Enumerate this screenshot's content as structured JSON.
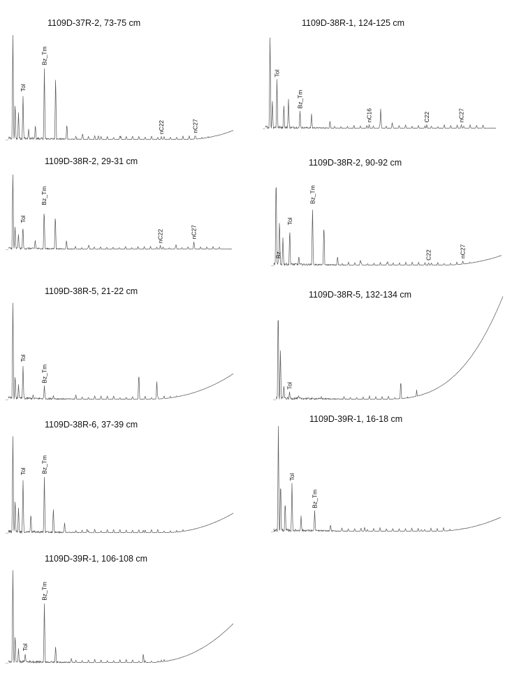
{
  "colors": {
    "background": "#ffffff",
    "trace": "#555555",
    "text": "#111111"
  },
  "chart_data": [
    {
      "type": "line",
      "title": "1109D-37R-2, 73-75 cm",
      "xlabel": "",
      "ylabel": "",
      "labeled_peaks": [
        {
          "name": "Tol",
          "x": 0.065,
          "y": 0.42
        },
        {
          "name": "Bz_Tm",
          "x": 0.16,
          "y": 0.66
        },
        {
          "name": "nC22",
          "x": 0.68,
          "y": 0.03
        },
        {
          "name": "nC27",
          "x": 0.83,
          "y": 0.04
        }
      ],
      "minor_peaks": [
        [
          0.02,
          1.0
        ],
        [
          0.03,
          0.35
        ],
        [
          0.045,
          0.25
        ],
        [
          0.09,
          0.1
        ],
        [
          0.12,
          0.14
        ],
        [
          0.21,
          0.6
        ],
        [
          0.26,
          0.15
        ],
        [
          0.33,
          0.06
        ],
        [
          0.4,
          0.04
        ],
        [
          0.5,
          0.03
        ]
      ],
      "baseline": {
        "end": 0.08,
        "rise_start": 0.8,
        "power": 2
      }
    },
    {
      "type": "line",
      "title": "1109D-38R-1, 124-125 cm",
      "xlabel": "",
      "ylabel": "",
      "labeled_peaks": [
        {
          "name": "Tol",
          "x": 0.05,
          "y": 0.5
        },
        {
          "name": "Bz_Tm",
          "x": 0.15,
          "y": 0.18
        },
        {
          "name": "nC16",
          "x": 0.45,
          "y": 0.04
        },
        {
          "name": "C22",
          "x": 0.7,
          "y": 0.04
        },
        {
          "name": "nC27",
          "x": 0.85,
          "y": 0.04
        }
      ],
      "minor_peaks": [
        [
          0.02,
          1.0
        ],
        [
          0.03,
          0.3
        ],
        [
          0.08,
          0.25
        ],
        [
          0.1,
          0.3
        ],
        [
          0.2,
          0.15
        ],
        [
          0.28,
          0.08
        ],
        [
          0.5,
          0.2
        ],
        [
          0.55,
          0.06
        ]
      ],
      "baseline": {
        "end": 0.0,
        "rise_start": 1.0,
        "power": 2
      }
    },
    {
      "type": "line",
      "title": "1109D-38R-2, 29-31 cm",
      "xlabel": "",
      "ylabel": "",
      "labeled_peaks": [
        {
          "name": "Tol",
          "x": 0.065,
          "y": 0.3
        },
        {
          "name": "Bz_Tm",
          "x": 0.16,
          "y": 0.52
        },
        {
          "name": "nC22",
          "x": 0.68,
          "y": 0.05
        },
        {
          "name": "nC27",
          "x": 0.83,
          "y": 0.1
        }
      ],
      "minor_peaks": [
        [
          0.02,
          1.0
        ],
        [
          0.03,
          0.3
        ],
        [
          0.045,
          0.2
        ],
        [
          0.12,
          0.12
        ],
        [
          0.21,
          0.45
        ],
        [
          0.26,
          0.12
        ],
        [
          0.36,
          0.06
        ],
        [
          0.75,
          0.06
        ]
      ],
      "baseline": {
        "end": 0.0,
        "rise_start": 1.0,
        "power": 2
      }
    },
    {
      "type": "line",
      "title": "1109D-38R-2, 90-92 cm",
      "xlabel": "",
      "ylabel": "",
      "labeled_peaks": [
        {
          "name": "Bz",
          "x": 0.02,
          "y": 0.05
        },
        {
          "name": "Tol",
          "x": 0.07,
          "y": 0.4
        },
        {
          "name": "Bz_Tm",
          "x": 0.17,
          "y": 0.62
        },
        {
          "name": "C22",
          "x": 0.68,
          "y": 0.03
        },
        {
          "name": "nC27",
          "x": 0.83,
          "y": 0.05
        }
      ],
      "minor_peaks": [
        [
          0.01,
          1.0
        ],
        [
          0.025,
          0.5
        ],
        [
          0.04,
          0.3
        ],
        [
          0.11,
          0.1
        ],
        [
          0.22,
          0.45
        ],
        [
          0.28,
          0.1
        ],
        [
          0.38,
          0.06
        ],
        [
          0.5,
          0.04
        ]
      ],
      "baseline": {
        "end": 0.1,
        "rise_start": 0.75,
        "power": 2
      }
    },
    {
      "type": "line",
      "title": "1109D-38R-5, 21-22 cm",
      "xlabel": "",
      "ylabel": "",
      "labeled_peaks": [
        {
          "name": "Tol",
          "x": 0.065,
          "y": 0.35
        },
        {
          "name": "Bz_Tm",
          "x": 0.16,
          "y": 0.14
        }
      ],
      "minor_peaks": [
        [
          0.02,
          1.0
        ],
        [
          0.03,
          0.25
        ],
        [
          0.045,
          0.15
        ],
        [
          0.11,
          0.05
        ],
        [
          0.2,
          0.04
        ],
        [
          0.3,
          0.05
        ],
        [
          0.58,
          0.27
        ],
        [
          0.66,
          0.18
        ],
        [
          0.8,
          0.05
        ]
      ],
      "baseline": {
        "end": 0.25,
        "rise_start": 0.62,
        "power": 2.2
      }
    },
    {
      "type": "line",
      "title": "1109D-38R-5, 132-134 cm",
      "xlabel": "",
      "ylabel": "",
      "labeled_peaks": [
        {
          "name": "Tol",
          "x": 0.06,
          "y": 0.08
        }
      ],
      "minor_peaks": [
        [
          0.01,
          1.0
        ],
        [
          0.02,
          0.5
        ],
        [
          0.035,
          0.15
        ],
        [
          0.1,
          0.04
        ],
        [
          0.2,
          0.03
        ],
        [
          0.55,
          0.2
        ],
        [
          0.62,
          0.1
        ]
      ],
      "baseline": {
        "end": 1.05,
        "rise_start": 0.45,
        "power": 3
      }
    },
    {
      "type": "line",
      "title": "1109D-38R-6, 37-39 cm",
      "xlabel": "",
      "ylabel": "",
      "labeled_peaks": [
        {
          "name": "Tol",
          "x": 0.065,
          "y": 0.55
        },
        {
          "name": "Bz_Tm",
          "x": 0.16,
          "y": 0.56
        }
      ],
      "minor_peaks": [
        [
          0.02,
          1.0
        ],
        [
          0.03,
          0.35
        ],
        [
          0.045,
          0.25
        ],
        [
          0.1,
          0.2
        ],
        [
          0.2,
          0.25
        ],
        [
          0.25,
          0.1
        ],
        [
          0.35,
          0.04
        ],
        [
          0.6,
          0.03
        ]
      ],
      "baseline": {
        "end": 0.19,
        "rise_start": 0.7,
        "power": 2
      }
    },
    {
      "type": "line",
      "title": "1109D-39R-1, 16-18 cm",
      "xlabel": "",
      "ylabel": "",
      "labeled_peaks": [
        {
          "name": "Tol",
          "x": 0.08,
          "y": 0.46
        },
        {
          "name": "Bz_Tm",
          "x": 0.18,
          "y": 0.2
        }
      ],
      "minor_peaks": [
        [
          0.02,
          1.0
        ],
        [
          0.03,
          0.5
        ],
        [
          0.05,
          0.3
        ],
        [
          0.12,
          0.15
        ],
        [
          0.25,
          0.07
        ],
        [
          0.4,
          0.04
        ],
        [
          0.65,
          0.02
        ]
      ],
      "baseline": {
        "end": 0.13,
        "rise_start": 0.72,
        "power": 2
      }
    },
    {
      "type": "line",
      "title": "1109D-39R-1, 106-108 cm",
      "xlabel": "",
      "ylabel": "",
      "labeled_peaks": [
        {
          "name": "Tol",
          "x": 0.075,
          "y": 0.1
        },
        {
          "name": "Bz_Tm",
          "x": 0.16,
          "y": 0.62
        }
      ],
      "minor_peaks": [
        [
          0.02,
          1.0
        ],
        [
          0.03,
          0.3
        ],
        [
          0.045,
          0.15
        ],
        [
          0.21,
          0.18
        ],
        [
          0.28,
          0.05
        ],
        [
          0.6,
          0.1
        ],
        [
          0.68,
          0.03
        ]
      ],
      "baseline": {
        "end": 0.4,
        "rise_start": 0.62,
        "power": 2.2
      }
    }
  ]
}
